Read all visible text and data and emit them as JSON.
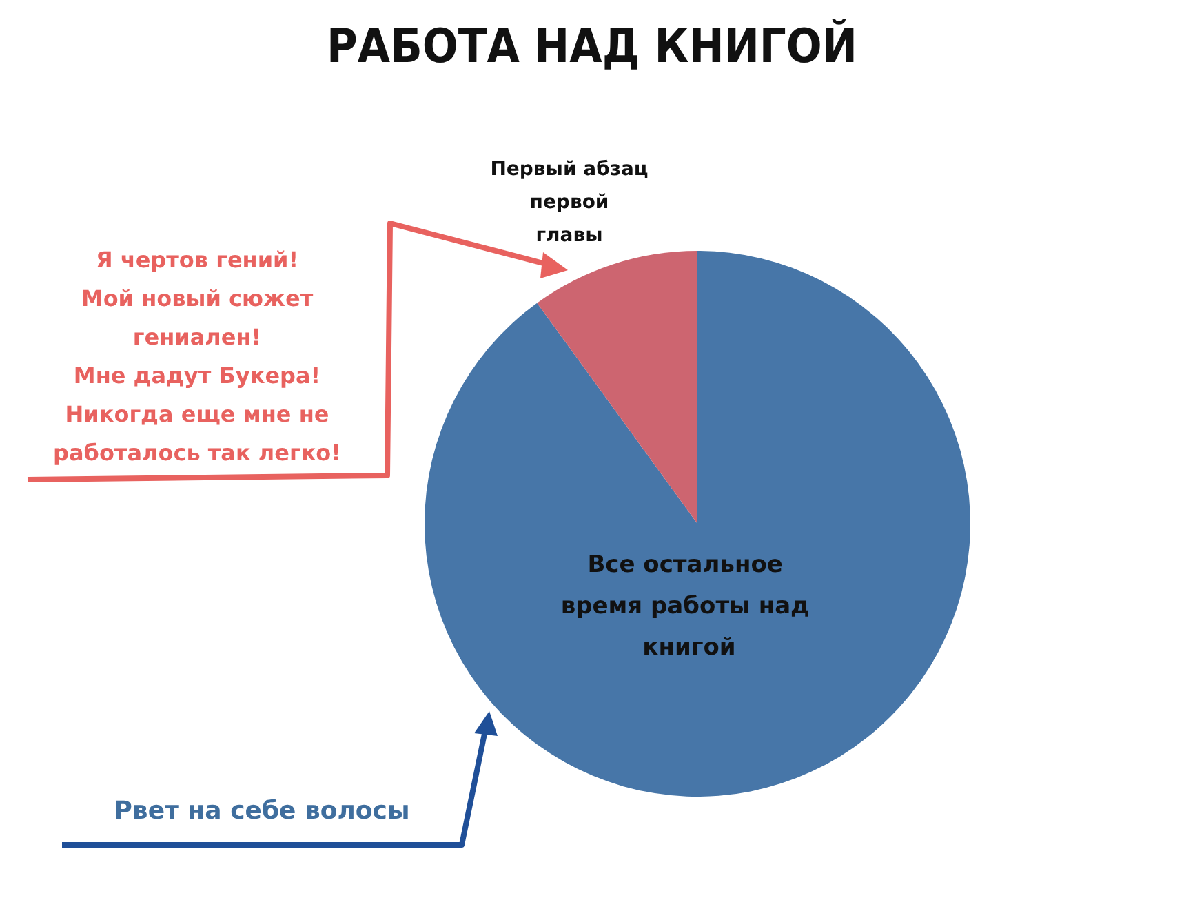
{
  "chart_data": {
    "type": "pie",
    "title": "РАБОТА НАД КНИГОЙ",
    "categories": [
      "Все остальное время работы над книгой",
      "Первый абзац первой главы"
    ],
    "values": [
      90,
      10
    ],
    "colors": [
      "#4776a8",
      "#cd6570"
    ],
    "annotations": [
      "Я чертов гений!\nМой новый сюжет\nгениален!\nМне дадут Букера!\nНикогда еще мне не\nработалось так легко!",
      "Рвет на себе волосы"
    ],
    "legend": false
  }
}
